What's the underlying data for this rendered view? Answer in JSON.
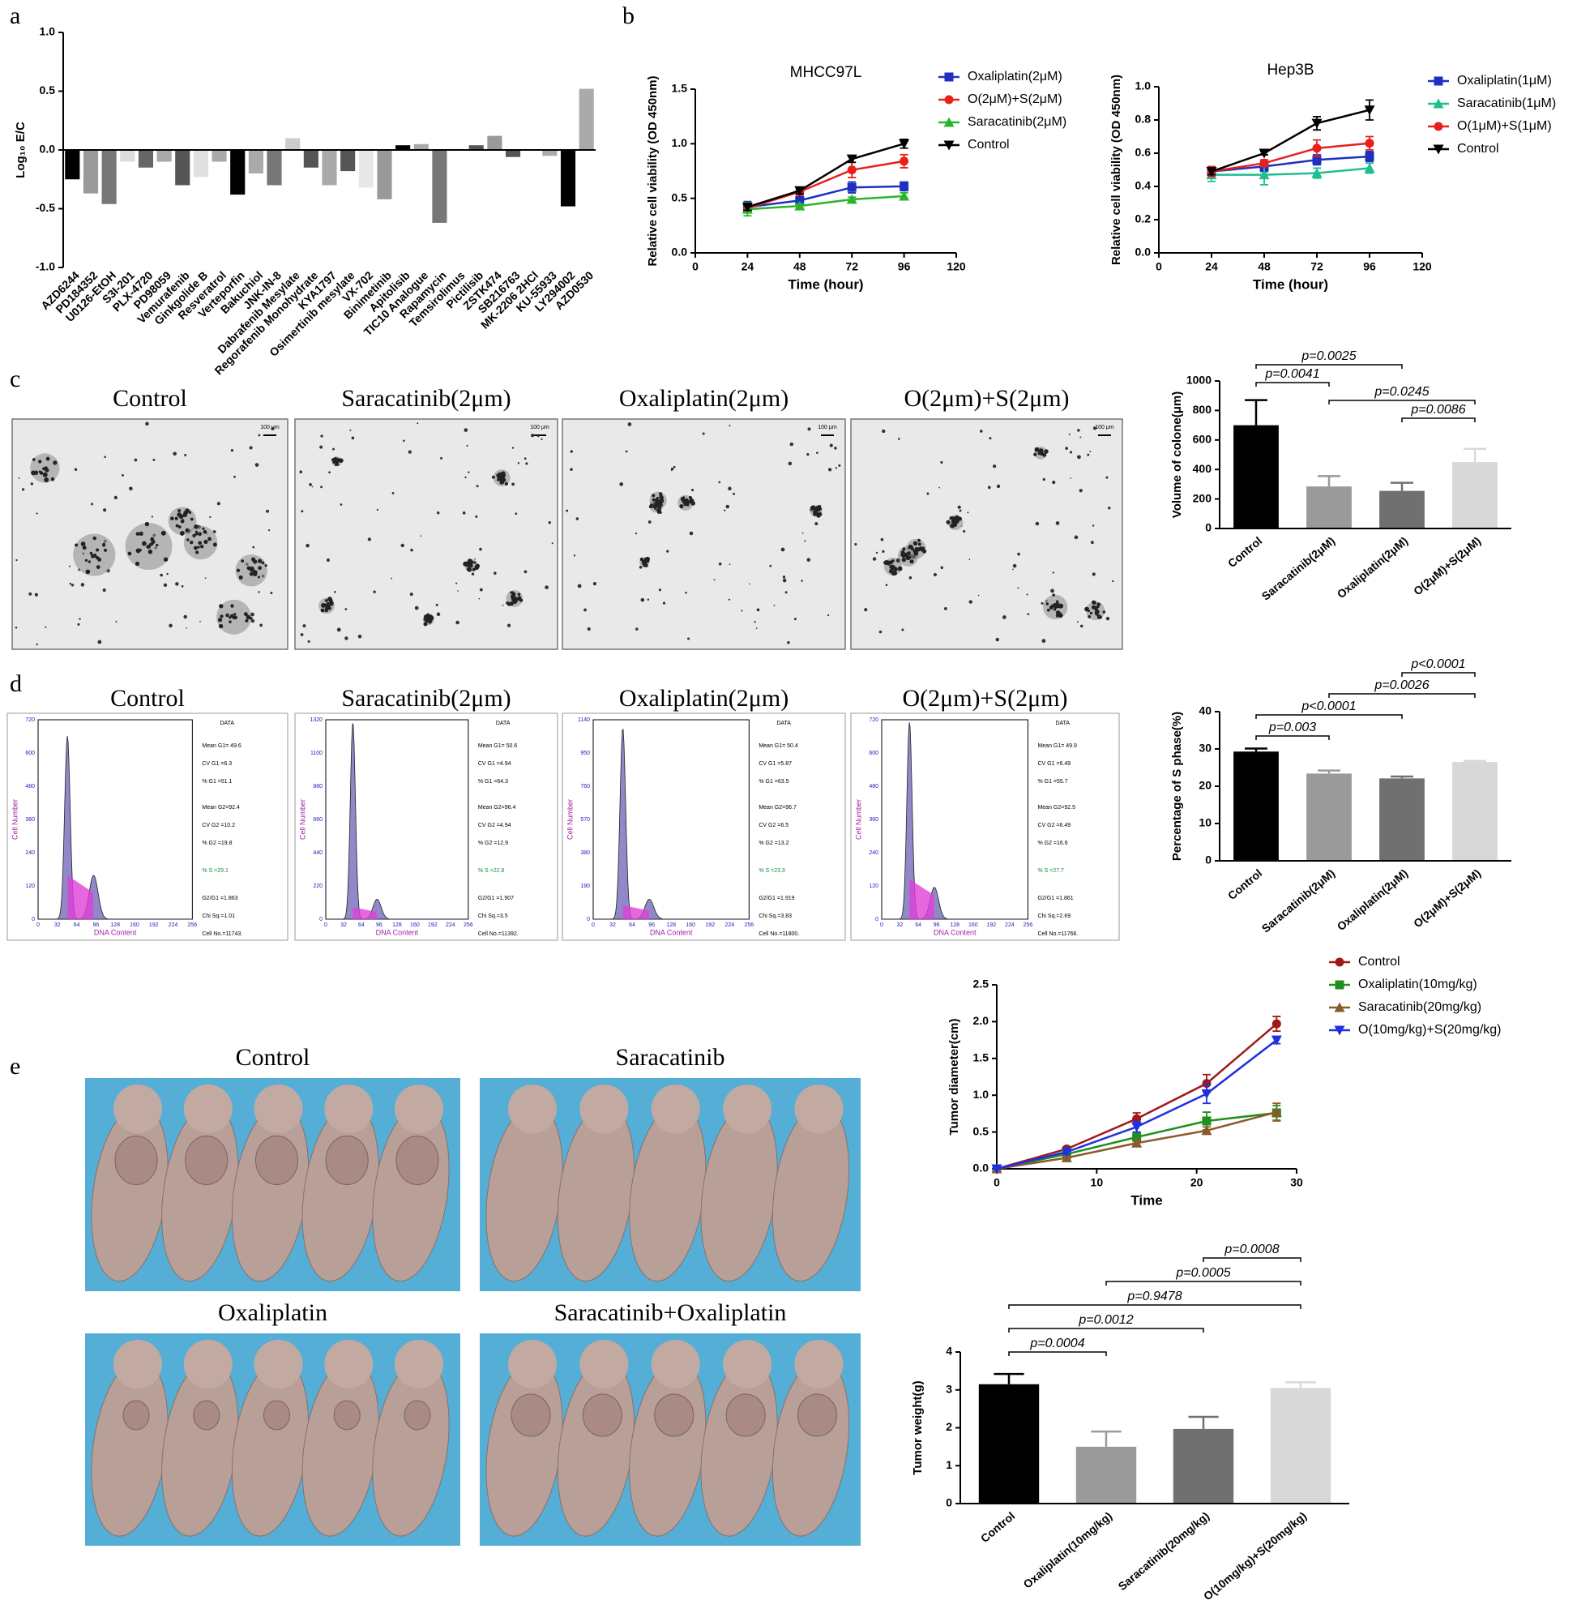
{
  "panel_labels": [
    "a",
    "b",
    "c",
    "d",
    "e"
  ],
  "micrographs": {
    "titles": [
      "Control",
      "Saracatinib(2μm)",
      "Oxaliplatin(2μm)",
      "O(2μm)+S(2μm)"
    ],
    "scale": "100 μm"
  },
  "flow_axes": {
    "xlabel": "DNA Content",
    "ylabel": "Cell Number",
    "box": "DATA",
    "xticks": [
      "0",
      "32",
      "64",
      "96",
      "128",
      "160",
      "192",
      "224",
      "256"
    ]
  },
  "flow": [
    {
      "title": "Control",
      "yticks": [
        "0",
        "120",
        "240",
        "360",
        "480",
        "600",
        "720"
      ],
      "stats": [
        "Mean G1= 49.6",
        "CV G1 =6.3",
        "% G1 =51.1",
        "Mean G2=92.4",
        "CV G2 =10.2",
        "% G2 =19.8",
        "% S =29.1",
        "G2/G1 =1.863",
        "Chi Sq.=1.01",
        "Cell No.=11743."
      ]
    },
    {
      "title": "Saracatinib(2μm)",
      "yticks": [
        "0",
        "220",
        "440",
        "660",
        "880",
        "1100",
        "1320"
      ],
      "stats": [
        "Mean G1= 50.6",
        "CV G1 =4.94",
        "% G1 =64.3",
        "Mean G2=96.4",
        "CV G2 =4.94",
        "% G2 =12.9",
        "% S =22.8",
        "G2/G1 =1.907",
        "Chi Sq.=3.5",
        "Cell No.=11392."
      ]
    },
    {
      "title": "Oxaliplatin(2μm)",
      "yticks": [
        "0",
        "190",
        "380",
        "570",
        "760",
        "950",
        "1140"
      ],
      "stats": [
        "Mean G1= 50.4",
        "CV G1 =5.87",
        "% G1 =63.5",
        "Mean G2=96.7",
        "CV G2 =6.5",
        "% G2 =13.2",
        "% S =23.3",
        "G2/G1 =1.919",
        "Chi Sq.=3.83",
        "Cell No.=11800."
      ]
    },
    {
      "title": "O(2μm)+S(2μm)",
      "yticks": [
        "0",
        "120",
        "240",
        "360",
        "480",
        "600",
        "720"
      ],
      "stats": [
        "Mean G1= 49.9",
        "CV G1 =6.49",
        "% G1 =55.7",
        "Mean G2=92.5",
        "CV G2 =6.49",
        "% G2 =16.6",
        "% S =27.7",
        "G2/G1 =1.861",
        "Chi Sq.=2.69",
        "Cell No.=11766."
      ]
    }
  ],
  "photos": {
    "titles": [
      "Control",
      "Saracatinib",
      "Oxaliplatin",
      "Saracatinib+Oxaliplatin"
    ]
  },
  "chart_data": [
    {
      "type": "bar",
      "ylabel": "Log₁₀ E/C",
      "categories": [
        "AZD6244",
        "PD184352",
        "U0126-EtOH",
        "S3I-201",
        "PLX-4720",
        "PD98059",
        "Vemurafenib",
        "Ginkgolide B",
        "Resveratrol",
        "Verteporfin",
        "Bakuchiol",
        "JNK-IN-8",
        "Dabrafenib Mesylate",
        "Regorafenib Monohydrate",
        "KYA1797",
        "Osimertinib mesylate",
        "VX-702",
        "Binimetinib",
        "Apitolisib",
        "TIC10 Analogue",
        "Rapamycin",
        "Temsirolimus",
        "Pictilisib",
        "ZSTK474",
        "SB216763",
        "MK-2206 2HCl",
        "KU-55933",
        "LY294002",
        "AZD0530"
      ],
      "values": [
        -0.25,
        -0.37,
        -0.46,
        -0.1,
        -0.15,
        -0.1,
        -0.3,
        -0.23,
        -0.1,
        -0.38,
        -0.2,
        -0.3,
        0.1,
        -0.15,
        -0.3,
        -0.18,
        -0.32,
        -0.42,
        0.04,
        0.05,
        -0.62,
        0.01,
        0.04,
        0.12,
        -0.06,
        0,
        -0.05,
        -0.48,
        0.52
      ],
      "colors": [
        "#000000",
        "#9a9a9a",
        "#777777",
        "#dddddd",
        "#666666",
        "#aaaaaa",
        "#555555",
        "#e0e0e0",
        "#aaaaaa",
        "#000000",
        "#aaaaaa",
        "#777777",
        "#cccccc",
        "#555555",
        "#aaaaaa",
        "#555555",
        "#e8e8e8",
        "#999999",
        "#000000",
        "#aaaaaa",
        "#777777",
        "#eeeeee",
        "#555555",
        "#999999",
        "#555555",
        "#cccccc",
        "#aaaaaa",
        "#000000",
        "#aaaaaa"
      ],
      "ylim": [
        -1,
        1
      ],
      "yticks": [
        {
          "value": -1,
          "label": "-1.0"
        },
        {
          "value": -0.5,
          "label": "-0.5"
        },
        {
          "value": 0,
          "label": "0.0"
        },
        {
          "value": 0.5,
          "label": "0.5"
        },
        {
          "value": 1,
          "label": "1.0"
        }
      ]
    },
    {
      "type": "line",
      "title": "MHCC97L",
      "xlabel": "Time (hour)",
      "ylabel": "Relative cell viability (OD 450nm)",
      "x": [
        24,
        48,
        72,
        96
      ],
      "xlim": [
        0,
        120
      ],
      "xticks": [
        0,
        24,
        48,
        72,
        96,
        120
      ],
      "ylim": [
        0,
        1.5
      ],
      "yticks": [
        {
          "value": 0,
          "label": "0.0"
        },
        {
          "value": 0.5,
          "label": "0.5"
        },
        {
          "value": 1,
          "label": "1.0"
        },
        {
          "value": 1.5,
          "label": "1.5"
        }
      ],
      "series": [
        {
          "name": "Oxaliplatin(2μM)",
          "color": "#1f2fc0",
          "marker": "square",
          "values": [
            0.42,
            0.48,
            0.6,
            0.61
          ],
          "errors": [
            0.05,
            0.03,
            0.05,
            0.04
          ]
        },
        {
          "name": "O(2μM)+S(2μM)",
          "color": "#e8201c",
          "marker": "circle",
          "values": [
            0.41,
            0.56,
            0.76,
            0.84
          ],
          "errors": [
            0.04,
            0.03,
            0.07,
            0.06
          ]
        },
        {
          "name": "Saracatinib(2μM)",
          "color": "#2cb52c",
          "marker": "triangle",
          "values": [
            0.4,
            0.43,
            0.49,
            0.52
          ],
          "errors": [
            0.06,
            0.02,
            0.02,
            0.03
          ]
        },
        {
          "name": "Control",
          "color": "#000000",
          "marker": "triangle-down",
          "values": [
            0.42,
            0.57,
            0.86,
            1.0
          ],
          "errors": [
            0.03,
            0.03,
            0.03,
            0.04
          ]
        }
      ]
    },
    {
      "type": "line",
      "title": "Hep3B",
      "xlabel": "Time (hour)",
      "ylabel": "Relative cell viability (OD 450nm)",
      "x": [
        24,
        48,
        72,
        96
      ],
      "xlim": [
        0,
        120
      ],
      "xticks": [
        0,
        24,
        48,
        72,
        96,
        120
      ],
      "ylim": [
        0,
        1
      ],
      "yticks": [
        {
          "value": 0,
          "label": "0.0"
        },
        {
          "value": 0.2,
          "label": "0.2"
        },
        {
          "value": 0.4,
          "label": "0.4"
        },
        {
          "value": 0.6,
          "label": "0.6"
        },
        {
          "value": 0.8,
          "label": "0.8"
        },
        {
          "value": 1,
          "label": "1.0"
        }
      ],
      "series": [
        {
          "name": "Oxaliplatin(1μM)",
          "color": "#1f2fc0",
          "marker": "square",
          "values": [
            0.49,
            0.52,
            0.56,
            0.58
          ],
          "errors": [
            0.03,
            0.03,
            0.03,
            0.03
          ]
        },
        {
          "name": "Saracatinib(1μM)",
          "color": "#1fbf8f",
          "marker": "triangle",
          "values": [
            0.47,
            0.47,
            0.48,
            0.51
          ],
          "errors": [
            0.04,
            0.06,
            0.03,
            0.03
          ]
        },
        {
          "name": "O(1μM)+S(1μM)",
          "color": "#e8201c",
          "marker": "circle",
          "values": [
            0.49,
            0.54,
            0.63,
            0.66
          ],
          "errors": [
            0.03,
            0.02,
            0.05,
            0.04
          ]
        },
        {
          "name": "Control",
          "color": "#000000",
          "marker": "triangle-down",
          "values": [
            0.49,
            0.6,
            0.78,
            0.86
          ],
          "errors": [
            0.02,
            0.01,
            0.04,
            0.06
          ]
        }
      ]
    },
    {
      "type": "bar",
      "ylabel": "Volume of colone(μm)",
      "categories": [
        "Control",
        "Saracatinib(2μM)",
        "Oxaliplatin(2μM)",
        "O(2μM)+S(2μM)"
      ],
      "values": [
        700,
        285,
        255,
        450
      ],
      "errors": [
        170,
        70,
        55,
        90
      ],
      "colors": [
        "#000000",
        "#9a9a9a",
        "#707070",
        "#d8d8d8"
      ],
      "ylim": [
        0,
        1000
      ],
      "yticks": [
        0,
        200,
        400,
        600,
        800,
        1000
      ],
      "comparisons": [
        {
          "between": [
            0,
            2
          ],
          "label": "p=0.0025"
        },
        {
          "between": [
            0,
            1
          ],
          "label": "p=0.0041"
        },
        {
          "between": [
            1,
            3
          ],
          "label": "p=0.0245"
        },
        {
          "between": [
            2,
            3
          ],
          "label": "p=0.0086"
        }
      ]
    },
    {
      "type": "bar",
      "ylabel": "Percentage of S phase(%)",
      "categories": [
        "Control",
        "Saracatinib(2μM)",
        "Oxaliplatin(2μM)",
        "O(2μM)+S(2μM)"
      ],
      "values": [
        29.3,
        23.4,
        22.1,
        26.5
      ],
      "errors": [
        0.8,
        0.8,
        0.5,
        0.3
      ],
      "colors": [
        "#000000",
        "#9a9a9a",
        "#707070",
        "#d8d8d8"
      ],
      "ylim": [
        0,
        40
      ],
      "yticks": [
        0,
        10,
        20,
        30,
        40
      ],
      "comparisons": [
        {
          "between": [
            2,
            3
          ],
          "label": "p<0.0001"
        },
        {
          "between": [
            1,
            3
          ],
          "label": "p=0.0026"
        },
        {
          "between": [
            0,
            2
          ],
          "label": "p<0.0001"
        },
        {
          "between": [
            0,
            1
          ],
          "label": "p=0.003"
        }
      ]
    },
    {
      "type": "line",
      "xlabel": "Time",
      "ylabel": "Tumor diameter(cm)",
      "x": [
        0,
        7,
        14,
        21,
        28
      ],
      "xlim": [
        0,
        30
      ],
      "xticks": [
        0,
        10,
        20,
        30
      ],
      "ylim": [
        0,
        2.5
      ],
      "yticks": [
        {
          "value": 0,
          "label": "0.0"
        },
        {
          "value": 0.5,
          "label": "0.5"
        },
        {
          "value": 1,
          "label": "1.0"
        },
        {
          "value": 1.5,
          "label": "1.5"
        },
        {
          "value": 2,
          "label": "2.0"
        },
        {
          "value": 2.5,
          "label": "2.5"
        }
      ],
      "series": [
        {
          "name": "Control",
          "color": "#a01818",
          "marker": "circle",
          "values": [
            0,
            0.27,
            0.68,
            1.16,
            1.97
          ],
          "errors": [
            0,
            0.03,
            0.08,
            0.12,
            0.1
          ]
        },
        {
          "name": "Oxaliplatin(10mg/kg)",
          "color": "#1f8f1f",
          "marker": "square",
          "values": [
            0,
            0.2,
            0.43,
            0.65,
            0.76
          ],
          "errors": [
            0,
            0.02,
            0.06,
            0.12,
            0.1
          ]
        },
        {
          "name": "Saracatinib(20mg/kg)",
          "color": "#8b5a2b",
          "marker": "triangle",
          "values": [
            0,
            0.15,
            0.35,
            0.52,
            0.77
          ],
          "errors": [
            0,
            0.02,
            0.03,
            0.05,
            0.12
          ]
        },
        {
          "name": "O(10mg/kg)+S(20mg/kg)",
          "color": "#2030e0",
          "marker": "triangle-down",
          "values": [
            0,
            0.23,
            0.57,
            1.02,
            1.75
          ],
          "errors": [
            0,
            0.03,
            0.07,
            0.13,
            0.05
          ]
        }
      ]
    },
    {
      "type": "bar",
      "ylabel": "Tumor weight(g)",
      "categories": [
        "Control",
        "Oxaliplatin(10mg/kg)",
        "Saracatinib(20mg/kg)",
        "O(10mg/kg)+S(20mg/kg)"
      ],
      "values": [
        3.15,
        1.5,
        1.97,
        3.05
      ],
      "errors": [
        0.27,
        0.4,
        0.32,
        0.15
      ],
      "colors": [
        "#000000",
        "#9a9a9a",
        "#707070",
        "#d8d8d8"
      ],
      "ylim": [
        0,
        4
      ],
      "yticks": [
        0,
        1,
        2,
        3,
        4
      ],
      "comparisons": [
        {
          "between": [
            2,
            3
          ],
          "label": "p=0.0008"
        },
        {
          "between": [
            1,
            3
          ],
          "label": "p=0.0005"
        },
        {
          "between": [
            0,
            3
          ],
          "label": "p=0.9478"
        },
        {
          "between": [
            0,
            2
          ],
          "label": "p=0.0012"
        },
        {
          "between": [
            0,
            1
          ],
          "label": "p=0.0004"
        }
      ]
    }
  ]
}
